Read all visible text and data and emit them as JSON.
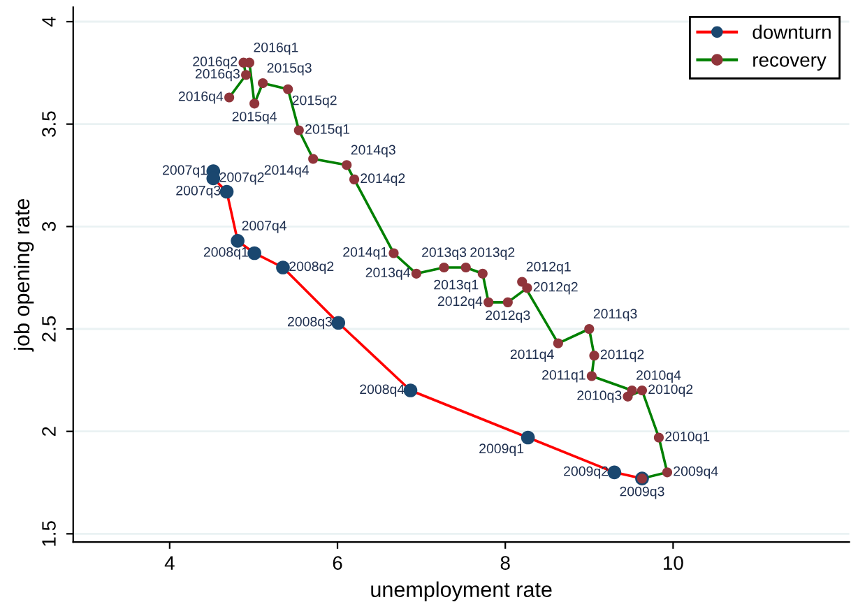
{
  "chart_data": {
    "type": "line",
    "xlabel": "unemployment rate",
    "ylabel": "job opening rate",
    "xlim": [
      2.85,
      12.1
    ],
    "ylim": [
      1.46,
      4.07
    ],
    "xticks": [
      4,
      6,
      8,
      10
    ],
    "yticks": [
      1.5,
      2,
      2.5,
      3,
      3.5,
      4
    ],
    "grid": "y",
    "legend": "top right",
    "marker": "circle",
    "series": [
      {
        "name": "downturn",
        "color": "#ff0000",
        "colors": [
          "#1a476f",
          "#1a476f",
          "#1a476f",
          "#1a476f",
          "#1a476f",
          "#1a476f",
          "#1a476f",
          "#1a476f",
          "#1a476f",
          "#1a476f",
          "#1a476f"
        ],
        "x": [
          4.52,
          4.52,
          4.68,
          4.81,
          5.01,
          5.35,
          6.01,
          6.87,
          8.27,
          9.3,
          9.63
        ],
        "values": [
          3.27,
          3.235,
          3.17,
          2.93,
          2.87,
          2.8,
          2.53,
          2.2,
          1.97,
          1.8,
          1.77
        ]
      },
      {
        "name": "recovery",
        "color": "#008000",
        "colors": [
          "#90353b",
          "#90353b",
          "#90353b",
          "#90353b",
          "#90353b",
          "#90353b",
          "#90353b",
          "#90353b",
          "#90353b",
          "#90353b",
          "#90353b",
          "#90353b",
          "#90353b",
          "#90353b",
          "#90353b",
          "#90353b",
          "#90353b",
          "#90353b",
          "#90353b",
          "#90353b",
          "#90353b",
          "#90353b",
          "#90353b",
          "#90353b",
          "#90353b",
          "#90353b",
          "#90353b",
          "#90353b",
          "#90353b",
          "#90353b"
        ],
        "x": [
          9.63,
          9.93,
          9.83,
          9.63,
          9.46,
          9.51,
          9.03,
          9.06,
          9.0,
          8.63,
          8.2,
          8.26,
          8.03,
          7.8,
          7.73,
          7.53,
          7.27,
          6.94,
          6.67,
          6.2,
          6.11,
          5.71,
          5.54,
          5.41,
          5.11,
          5.01,
          4.95,
          4.88,
          4.91,
          4.71
        ],
        "values": [
          1.77,
          1.8,
          1.97,
          2.2,
          2.17,
          2.2,
          2.27,
          2.37,
          2.5,
          2.43,
          2.73,
          2.7,
          2.63,
          2.63,
          2.77,
          2.8,
          2.8,
          2.77,
          2.87,
          3.23,
          3.3,
          3.33,
          3.47,
          3.67,
          3.7,
          3.6,
          3.8,
          3.8,
          3.74,
          3.63
        ]
      }
    ],
    "annotations": [
      {
        "text": "2007q1",
        "x": 4.52,
        "y": 3.27
      },
      {
        "text": "2007q2",
        "x": 4.52,
        "y": 3.235
      },
      {
        "text": "2007q3",
        "x": 4.68,
        "y": 3.17
      },
      {
        "text": "2007q4",
        "x": 4.81,
        "y": 2.93
      },
      {
        "text": "2008q1",
        "x": 5.01,
        "y": 2.87
      },
      {
        "text": "2008q2",
        "x": 5.35,
        "y": 2.8
      },
      {
        "text": "2008q3",
        "x": 6.01,
        "y": 2.53
      },
      {
        "text": "2008q4",
        "x": 6.87,
        "y": 2.2
      },
      {
        "text": "2009q1",
        "x": 8.27,
        "y": 1.97
      },
      {
        "text": "2009q2",
        "x": 9.3,
        "y": 1.8
      },
      {
        "text": "2009q3",
        "x": 9.63,
        "y": 1.77
      },
      {
        "text": "2009q4",
        "x": 9.93,
        "y": 1.8
      },
      {
        "text": "2010q1",
        "x": 9.83,
        "y": 1.97
      },
      {
        "text": "2010q2",
        "x": 9.63,
        "y": 2.2
      },
      {
        "text": "2010q3",
        "x": 9.46,
        "y": 2.17
      },
      {
        "text": "2010q4",
        "x": 9.51,
        "y": 2.2
      },
      {
        "text": "2011q1",
        "x": 9.03,
        "y": 2.27
      },
      {
        "text": "2011q2",
        "x": 9.06,
        "y": 2.37
      },
      {
        "text": "2011q3",
        "x": 9.0,
        "y": 2.5
      },
      {
        "text": "2011q4",
        "x": 8.63,
        "y": 2.43
      },
      {
        "text": "2012q1",
        "x": 8.2,
        "y": 2.73
      },
      {
        "text": "2012q2",
        "x": 8.26,
        "y": 2.7
      },
      {
        "text": "2012q3",
        "x": 8.03,
        "y": 2.63
      },
      {
        "text": "2012q4",
        "x": 7.8,
        "y": 2.63
      },
      {
        "text": "2013q1",
        "x": 7.73,
        "y": 2.77
      },
      {
        "text": "2013q2",
        "x": 7.53,
        "y": 2.8
      },
      {
        "text": "2013q3",
        "x": 7.27,
        "y": 2.8
      },
      {
        "text": "2013q4",
        "x": 6.94,
        "y": 2.77
      },
      {
        "text": "2014q1",
        "x": 6.67,
        "y": 2.87
      },
      {
        "text": "2014q2",
        "x": 6.2,
        "y": 3.23
      },
      {
        "text": "2014q3",
        "x": 6.11,
        "y": 3.3
      },
      {
        "text": "2014q4",
        "x": 5.71,
        "y": 3.33
      },
      {
        "text": "2015q1",
        "x": 5.54,
        "y": 3.47
      },
      {
        "text": "2015q2",
        "x": 5.41,
        "y": 3.67
      },
      {
        "text": "2015q3",
        "x": 5.11,
        "y": 3.7
      },
      {
        "text": "2015q4",
        "x": 5.01,
        "y": 3.6
      },
      {
        "text": "2016q1",
        "x": 4.95,
        "y": 3.8
      },
      {
        "text": "2016q2",
        "x": 4.88,
        "y": 3.8
      },
      {
        "text": "2016q3",
        "x": 4.91,
        "y": 3.74
      },
      {
        "text": "2016q4",
        "x": 4.71,
        "y": 3.63
      }
    ]
  }
}
